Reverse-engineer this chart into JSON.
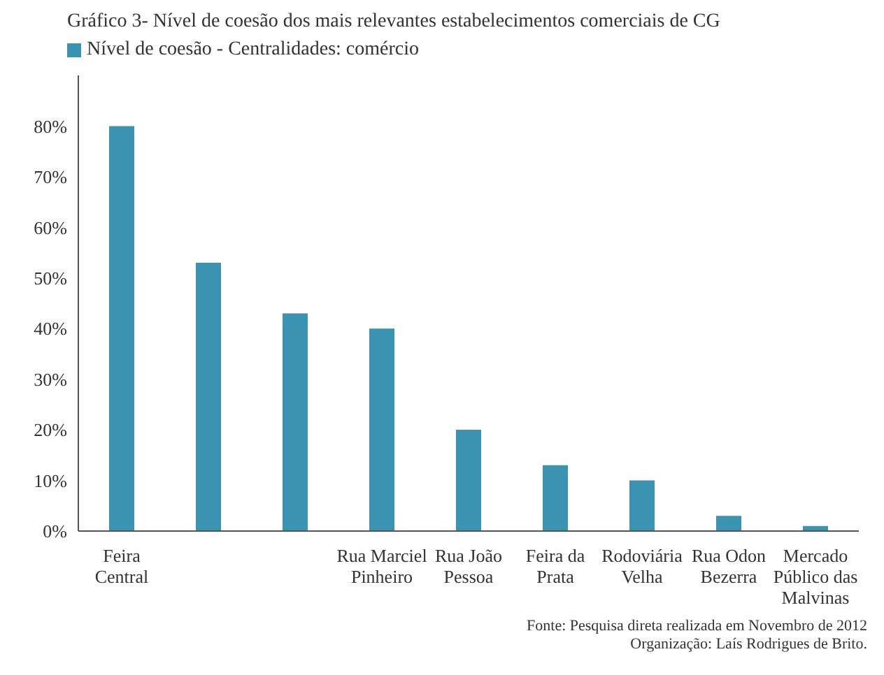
{
  "chart_data": {
    "type": "bar",
    "title": "Gráfico 3- Nível de coesão dos mais relevantes estabelecimentos comerciais de CG",
    "categories": [
      "Feira Central",
      null,
      null,
      "Rua Marciel Pinheiro",
      "Rua João Pessoa",
      "Feira da Prata",
      "Rodoviária Velha",
      "Rua Odon Bezerra",
      "Mercado Público das Malvinas"
    ],
    "series": [
      {
        "name": "Nível de coesão - Centralidades: comércio",
        "color": "#3a93b0",
        "values": [
          80,
          53,
          43,
          40,
          20,
          13,
          10,
          3,
          1
        ]
      }
    ],
    "ylim": [
      0,
      90
    ],
    "yticks": [
      {
        "value": 0,
        "label": "0%"
      },
      {
        "value": 10,
        "label": "10%"
      },
      {
        "value": 20,
        "label": "20%"
      },
      {
        "value": 30,
        "label": "30%"
      },
      {
        "value": 40,
        "label": "40%"
      },
      {
        "value": 50,
        "label": "50%"
      },
      {
        "value": 60,
        "label": "60%"
      },
      {
        "value": 70,
        "label": "70%"
      },
      {
        "value": 80,
        "label": "80%"
      }
    ],
    "grid": false,
    "legend": "top left",
    "annotations": [
      "Fonte: Pesquisa direta realizada em Novembro de 2012",
      "Organização: Laís Rodrigues de Brito."
    ]
  }
}
